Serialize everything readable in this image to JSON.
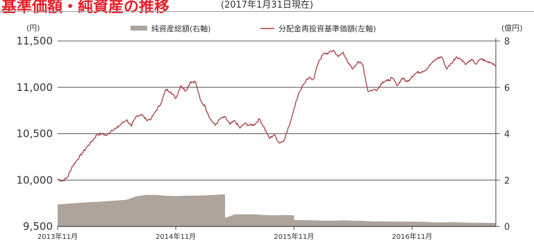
{
  "header": {
    "title": "基準価額・純資産の推移",
    "subtitle": "(2017年1月31日現在)"
  },
  "chart_data": {
    "type": "line+area",
    "title": "",
    "subtitle": "(2017年1月31日現在)",
    "left_axis": {
      "unit": "(円)",
      "range": [
        9500,
        11500
      ],
      "ticks": [
        "9,500",
        "10,000",
        "10,500",
        "11,000",
        "11,500"
      ],
      "tick_values": [
        9500,
        10000,
        10500,
        11000,
        11500
      ]
    },
    "right_axis": {
      "unit": "(億円)",
      "range": [
        0,
        8
      ],
      "ticks": [
        "0",
        "2",
        "4",
        "6",
        "8"
      ],
      "tick_values": [
        0,
        2,
        4,
        6,
        8
      ]
    },
    "x_axis": {
      "ticks": [
        "2013年11月",
        "2014年11月",
        "2015年11月",
        "2016年11月"
      ],
      "tick_positions": [
        0,
        12,
        24,
        36
      ],
      "range": [
        0,
        44.5
      ]
    },
    "legend": {
      "placement": "top",
      "entries": [
        "純資産総額(右軸)",
        "分配金再投資基準価額(左軸)"
      ]
    },
    "grid": "horizontal",
    "series": [
      {
        "name": "分配金再投資基準価額(左軸)",
        "axis": "left",
        "color": "#a83a40",
        "x": [
          0,
          0.5,
          1,
          1.5,
          2,
          2.5,
          3,
          3.5,
          4,
          4.5,
          5,
          5.5,
          6,
          6.5,
          7,
          7.5,
          8,
          8.5,
          9,
          9.5,
          10,
          10.5,
          11,
          11.5,
          12,
          12.5,
          13,
          13.5,
          14,
          14.5,
          15,
          15.5,
          16,
          16.5,
          17,
          17.5,
          18,
          18.5,
          19,
          19.5,
          20,
          20.5,
          21,
          21.5,
          22,
          22.5,
          23,
          23.5,
          24,
          24.5,
          25,
          25.5,
          26,
          26.5,
          27,
          27.5,
          28,
          28.5,
          29,
          29.5,
          30,
          30.5,
          31,
          31.5,
          32,
          32.5,
          33,
          33.5,
          34,
          34.5,
          35,
          35.5,
          36,
          36.5,
          37,
          37.5,
          38,
          38.5,
          39,
          39.5,
          40,
          40.5,
          41,
          41.5,
          42,
          42.5,
          43,
          43.5,
          44,
          44.5
        ],
        "values": [
          10010,
          9990,
          10030,
          10150,
          10220,
          10290,
          10360,
          10420,
          10490,
          10500,
          10480,
          10540,
          10560,
          10610,
          10650,
          10580,
          10690,
          10710,
          10650,
          10660,
          10750,
          10830,
          10980,
          10950,
          10880,
          11020,
          10960,
          11060,
          11060,
          10860,
          10790,
          10660,
          10590,
          10660,
          10680,
          10600,
          10640,
          10560,
          10610,
          10590,
          10600,
          10660,
          10560,
          10450,
          10490,
          10400,
          10430,
          10580,
          10770,
          10940,
          11040,
          11100,
          11090,
          11280,
          11360,
          11370,
          11400,
          11330,
          11380,
          11260,
          11200,
          11280,
          11240,
          10960,
          10970,
          10980,
          11060,
          11070,
          11100,
          11020,
          11100,
          11060,
          11120,
          11160,
          11170,
          11200,
          11260,
          11310,
          11330,
          11200,
          11260,
          11330,
          11300,
          11250,
          11300,
          11250,
          11310,
          11280,
          11270,
          11240
        ]
      },
      {
        "name": "純資産総額(右軸)",
        "axis": "right",
        "color": "#aea49b",
        "type": "area",
        "x": [
          0,
          1,
          2,
          3,
          4,
          5,
          6,
          7,
          8,
          9,
          10,
          11,
          12,
          13,
          14,
          15,
          16,
          17,
          17.01,
          18,
          19,
          20,
          21,
          22,
          23,
          24,
          24.01,
          25,
          26,
          27,
          28,
          29,
          30,
          31,
          32,
          33,
          34,
          35,
          36,
          37,
          38,
          39,
          40,
          41,
          42,
          43,
          44,
          44.5
        ],
        "values": [
          0.95,
          0.98,
          1.01,
          1.04,
          1.06,
          1.09,
          1.12,
          1.15,
          1.3,
          1.36,
          1.36,
          1.32,
          1.31,
          1.32,
          1.33,
          1.34,
          1.36,
          1.39,
          0.37,
          0.52,
          0.52,
          0.52,
          0.49,
          0.48,
          0.49,
          0.48,
          0.27,
          0.27,
          0.26,
          0.25,
          0.25,
          0.26,
          0.25,
          0.24,
          0.22,
          0.22,
          0.21,
          0.21,
          0.2,
          0.2,
          0.18,
          0.17,
          0.18,
          0.17,
          0.16,
          0.16,
          0.15,
          0.15
        ]
      }
    ]
  }
}
